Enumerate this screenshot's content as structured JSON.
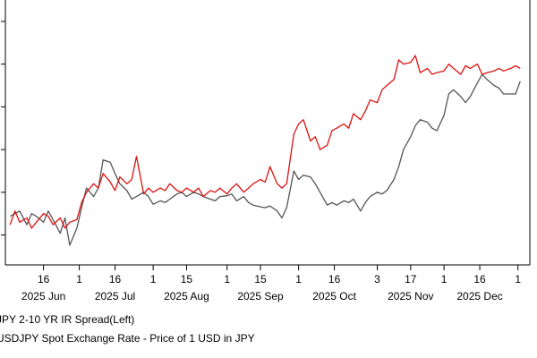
{
  "chart_data": {
    "type": "line",
    "title": "",
    "xlabel": "",
    "ylabel": "",
    "grid": false,
    "legend_position": "bottom-left",
    "x_ticks": [
      {
        "day": "16",
        "month": "2025 Jun",
        "date": "2025-06-16"
      },
      {
        "day": "1",
        "month": "",
        "date": "2025-07-01"
      },
      {
        "day": "16",
        "month": "2025 Jul",
        "date": "2025-07-16"
      },
      {
        "day": "1",
        "month": "",
        "date": "2025-08-01"
      },
      {
        "day": "15",
        "month": "2025 Aug",
        "date": "2025-08-15"
      },
      {
        "day": "1",
        "month": "",
        "date": "2025-09-01"
      },
      {
        "day": "15",
        "month": "2025 Sep",
        "date": "2025-09-15"
      },
      {
        "day": "1",
        "month": "",
        "date": "2025-10-01"
      },
      {
        "day": "16",
        "month": "2025 Oct",
        "date": "2025-10-16"
      },
      {
        "day": "3",
        "month": "",
        "date": "2025-11-03"
      },
      {
        "day": "17",
        "month": "2025 Nov",
        "date": "2025-11-17"
      },
      {
        "day": "1",
        "month": "",
        "date": "2025-12-01"
      },
      {
        "day": "16",
        "month": "2025 Dec",
        "date": "2025-12-16"
      },
      {
        "day": "1",
        "month": "",
        "date": "2026-01-01"
      }
    ],
    "series": [
      {
        "name": "JPY 2-10 YR IR Spread(Left)",
        "color": "#555555",
        "points": [
          [
            "2025-06-02",
            0.22
          ],
          [
            "2025-06-04",
            0.25
          ],
          [
            "2025-06-06",
            0.28
          ],
          [
            "2025-06-09",
            0.12
          ],
          [
            "2025-06-11",
            0.25
          ],
          [
            "2025-06-13",
            0.22
          ],
          [
            "2025-06-16",
            0.15
          ],
          [
            "2025-06-18",
            0.28
          ],
          [
            "2025-06-20",
            0.18
          ],
          [
            "2025-06-23",
            0.02
          ],
          [
            "2025-06-25",
            0.2
          ],
          [
            "2025-06-27",
            -0.12
          ],
          [
            "2025-06-30",
            0.08
          ],
          [
            "2025-07-02",
            0.32
          ],
          [
            "2025-07-04",
            0.55
          ],
          [
            "2025-07-07",
            0.45
          ],
          [
            "2025-07-09",
            0.55
          ],
          [
            "2025-07-11",
            0.88
          ],
          [
            "2025-07-14",
            0.85
          ],
          [
            "2025-07-16",
            0.72
          ],
          [
            "2025-07-18",
            0.6
          ],
          [
            "2025-07-21",
            0.52
          ],
          [
            "2025-07-23",
            0.42
          ],
          [
            "2025-07-25",
            0.45
          ],
          [
            "2025-07-28",
            0.5
          ],
          [
            "2025-07-30",
            0.45
          ],
          [
            "2025-08-01",
            0.36
          ],
          [
            "2025-08-04",
            0.4
          ],
          [
            "2025-08-06",
            0.38
          ],
          [
            "2025-08-08",
            0.42
          ],
          [
            "2025-08-11",
            0.48
          ],
          [
            "2025-08-13",
            0.5
          ],
          [
            "2025-08-15",
            0.45
          ],
          [
            "2025-08-18",
            0.5
          ],
          [
            "2025-08-20",
            0.48
          ],
          [
            "2025-08-22",
            0.45
          ],
          [
            "2025-08-25",
            0.42
          ],
          [
            "2025-08-27",
            0.4
          ],
          [
            "2025-08-29",
            0.45
          ],
          [
            "2025-09-01",
            0.46
          ],
          [
            "2025-09-03",
            0.48
          ],
          [
            "2025-09-05",
            0.4
          ],
          [
            "2025-09-08",
            0.45
          ],
          [
            "2025-09-10",
            0.38
          ],
          [
            "2025-09-12",
            0.35
          ],
          [
            "2025-09-15",
            0.33
          ],
          [
            "2025-09-17",
            0.32
          ],
          [
            "2025-09-19",
            0.34
          ],
          [
            "2025-09-22",
            0.28
          ],
          [
            "2025-09-24",
            0.2
          ],
          [
            "2025-09-26",
            0.32
          ],
          [
            "2025-09-29",
            0.75
          ],
          [
            "2025-10-01",
            0.65
          ],
          [
            "2025-10-03",
            0.7
          ],
          [
            "2025-10-06",
            0.68
          ],
          [
            "2025-10-08",
            0.6
          ],
          [
            "2025-10-10",
            0.5
          ],
          [
            "2025-10-13",
            0.35
          ],
          [
            "2025-10-15",
            0.38
          ],
          [
            "2025-10-17",
            0.35
          ],
          [
            "2025-10-20",
            0.4
          ],
          [
            "2025-10-22",
            0.38
          ],
          [
            "2025-10-24",
            0.42
          ],
          [
            "2025-10-27",
            0.28
          ],
          [
            "2025-10-29",
            0.38
          ],
          [
            "2025-10-31",
            0.45
          ],
          [
            "2025-11-03",
            0.5
          ],
          [
            "2025-11-05",
            0.48
          ],
          [
            "2025-11-07",
            0.52
          ],
          [
            "2025-11-10",
            0.65
          ],
          [
            "2025-11-12",
            0.8
          ],
          [
            "2025-11-14",
            1.0
          ],
          [
            "2025-11-17",
            1.15
          ],
          [
            "2025-11-19",
            1.28
          ],
          [
            "2025-11-21",
            1.35
          ],
          [
            "2025-11-24",
            1.32
          ],
          [
            "2025-11-26",
            1.25
          ],
          [
            "2025-11-28",
            1.22
          ],
          [
            "2025-12-01",
            1.4
          ],
          [
            "2025-12-03",
            1.65
          ],
          [
            "2025-12-05",
            1.7
          ],
          [
            "2025-12-08",
            1.62
          ],
          [
            "2025-12-10",
            1.55
          ],
          [
            "2025-12-12",
            1.62
          ],
          [
            "2025-12-15",
            1.78
          ],
          [
            "2025-12-17",
            1.88
          ],
          [
            "2025-12-19",
            1.82
          ],
          [
            "2025-12-22",
            1.75
          ],
          [
            "2025-12-24",
            1.72
          ],
          [
            "2025-12-26",
            1.65
          ],
          [
            "2025-12-29",
            1.65
          ],
          [
            "2025-12-31",
            1.65
          ],
          [
            "2026-01-02",
            1.8
          ]
        ]
      },
      {
        "name": "USDJPY Spot Exchange Rate - Price of 1 USD in JPY",
        "color": "#dd1111",
        "points": [
          [
            "2025-06-02",
            0.12
          ],
          [
            "2025-06-04",
            0.28
          ],
          [
            "2025-06-06",
            0.15
          ],
          [
            "2025-06-09",
            0.2
          ],
          [
            "2025-06-11",
            0.08
          ],
          [
            "2025-06-13",
            0.15
          ],
          [
            "2025-06-16",
            0.25
          ],
          [
            "2025-06-18",
            0.22
          ],
          [
            "2025-06-20",
            0.12
          ],
          [
            "2025-06-23",
            0.2
          ],
          [
            "2025-06-25",
            0.08
          ],
          [
            "2025-06-27",
            0.15
          ],
          [
            "2025-06-30",
            0.18
          ],
          [
            "2025-07-02",
            0.38
          ],
          [
            "2025-07-04",
            0.5
          ],
          [
            "2025-07-07",
            0.6
          ],
          [
            "2025-07-09",
            0.55
          ],
          [
            "2025-07-11",
            0.72
          ],
          [
            "2025-07-14",
            0.62
          ],
          [
            "2025-07-16",
            0.52
          ],
          [
            "2025-07-18",
            0.68
          ],
          [
            "2025-07-21",
            0.6
          ],
          [
            "2025-07-23",
            0.65
          ],
          [
            "2025-07-25",
            0.92
          ],
          [
            "2025-07-28",
            0.48
          ],
          [
            "2025-07-30",
            0.55
          ],
          [
            "2025-08-01",
            0.5
          ],
          [
            "2025-08-04",
            0.55
          ],
          [
            "2025-08-06",
            0.52
          ],
          [
            "2025-08-08",
            0.6
          ],
          [
            "2025-08-11",
            0.52
          ],
          [
            "2025-08-13",
            0.5
          ],
          [
            "2025-08-15",
            0.55
          ],
          [
            "2025-08-18",
            0.5
          ],
          [
            "2025-08-20",
            0.55
          ],
          [
            "2025-08-22",
            0.45
          ],
          [
            "2025-08-25",
            0.52
          ],
          [
            "2025-08-27",
            0.5
          ],
          [
            "2025-08-29",
            0.55
          ],
          [
            "2025-09-01",
            0.48
          ],
          [
            "2025-09-03",
            0.55
          ],
          [
            "2025-09-05",
            0.6
          ],
          [
            "2025-09-08",
            0.5
          ],
          [
            "2025-09-10",
            0.55
          ],
          [
            "2025-09-12",
            0.6
          ],
          [
            "2025-09-15",
            0.65
          ],
          [
            "2025-09-17",
            0.62
          ],
          [
            "2025-09-19",
            0.8
          ],
          [
            "2025-09-22",
            0.6
          ],
          [
            "2025-09-24",
            0.55
          ],
          [
            "2025-09-26",
            0.6
          ],
          [
            "2025-09-29",
            1.18
          ],
          [
            "2025-10-01",
            1.3
          ],
          [
            "2025-10-03",
            1.35
          ],
          [
            "2025-10-06",
            1.1
          ],
          [
            "2025-10-08",
            1.15
          ],
          [
            "2025-10-10",
            1.0
          ],
          [
            "2025-10-13",
            1.05
          ],
          [
            "2025-10-15",
            1.22
          ],
          [
            "2025-10-17",
            1.25
          ],
          [
            "2025-10-20",
            1.3
          ],
          [
            "2025-10-22",
            1.25
          ],
          [
            "2025-10-24",
            1.42
          ],
          [
            "2025-10-27",
            1.35
          ],
          [
            "2025-10-29",
            1.45
          ],
          [
            "2025-10-31",
            1.58
          ],
          [
            "2025-11-03",
            1.55
          ],
          [
            "2025-11-05",
            1.7
          ],
          [
            "2025-11-07",
            1.75
          ],
          [
            "2025-11-10",
            1.82
          ],
          [
            "2025-11-12",
            2.05
          ],
          [
            "2025-11-14",
            2.0
          ],
          [
            "2025-11-17",
            2.02
          ],
          [
            "2025-11-19",
            2.1
          ],
          [
            "2025-11-21",
            1.9
          ],
          [
            "2025-11-24",
            1.95
          ],
          [
            "2025-11-26",
            1.88
          ],
          [
            "2025-11-28",
            1.9
          ],
          [
            "2025-12-01",
            1.92
          ],
          [
            "2025-12-03",
            2.0
          ],
          [
            "2025-12-05",
            1.95
          ],
          [
            "2025-12-08",
            1.88
          ],
          [
            "2025-12-10",
            1.98
          ],
          [
            "2025-12-12",
            1.95
          ],
          [
            "2025-12-15",
            2.0
          ],
          [
            "2025-12-17",
            1.88
          ],
          [
            "2025-12-19",
            1.9
          ],
          [
            "2025-12-22",
            1.92
          ],
          [
            "2025-12-24",
            1.95
          ],
          [
            "2025-12-26",
            1.92
          ],
          [
            "2025-12-29",
            1.95
          ],
          [
            "2025-12-31",
            1.98
          ],
          [
            "2026-01-02",
            1.95
          ]
        ]
      }
    ]
  }
}
